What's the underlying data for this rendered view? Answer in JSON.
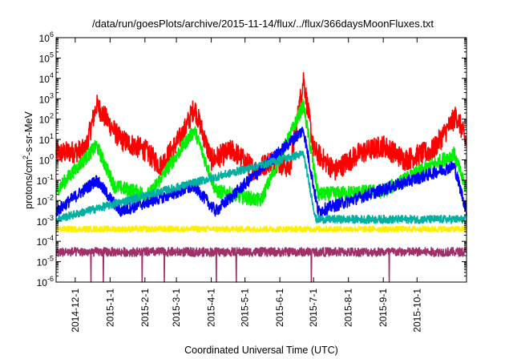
{
  "chart_data": {
    "type": "line",
    "title": "/data/run/goesPlots/archive/2015-11-14/flux/../flux/366daysMoonFluxes.txt",
    "xlabel": "Coordinated Universal Time (UTC)",
    "ylabel_parts": [
      "protons/cm",
      "2",
      "-s-sr-MeV"
    ],
    "yscale": "log",
    "ylim": [
      1e-06,
      1000000.0
    ],
    "xlim": [
      "2014-11-14",
      "2015-11-14"
    ],
    "grid": false,
    "legend": "none",
    "y_ticks": [
      {
        "exp": "-6"
      },
      {
        "exp": "-5"
      },
      {
        "exp": "-4"
      },
      {
        "exp": "-3"
      },
      {
        "exp": "-2"
      },
      {
        "exp": "-1"
      },
      {
        "exp": "0"
      },
      {
        "exp": "1"
      },
      {
        "exp": "2"
      },
      {
        "exp": "3"
      },
      {
        "exp": "4"
      },
      {
        "exp": "5"
      },
      {
        "exp": "6"
      }
    ],
    "x_ticks": [
      "2014-12-1",
      "2015-1-1",
      "2015-2-1",
      "2015-3-1",
      "2015-4-1",
      "2015-5-1",
      "2015-6-1",
      "2015-7-1",
      "2015-8-1",
      "2015-9-1",
      "2015-10-1"
    ],
    "x_tick_dates": [
      "2014-12-01",
      "2015-01-01",
      "2015-02-01",
      "2015-03-01",
      "2015-04-01",
      "2015-05-01",
      "2015-06-01",
      "2015-07-01",
      "2015-08-01",
      "2015-09-01",
      "2015-10-01"
    ],
    "series": [
      {
        "color": "#ff0000",
        "base": 3.0,
        "jitter": 0.55,
        "points": [
          [
            "2014-11-14",
            2.0
          ],
          [
            "2014-12-10",
            3.0
          ],
          [
            "2014-12-20",
            500
          ],
          [
            "2015-01-10",
            10
          ],
          [
            "2015-02-01",
            3.0
          ],
          [
            "2015-02-15",
            0.5
          ],
          [
            "2015-03-07",
            20
          ],
          [
            "2015-03-17",
            400
          ],
          [
            "2015-04-01",
            1.0
          ],
          [
            "2015-04-20",
            3.0
          ],
          [
            "2015-05-10",
            0.3
          ],
          [
            "2015-05-25",
            1.0
          ],
          [
            "2015-06-10",
            0.4
          ],
          [
            "2015-06-22",
            10000
          ],
          [
            "2015-07-01",
            3.0
          ],
          [
            "2015-07-20",
            0.3
          ],
          [
            "2015-08-10",
            2.0
          ],
          [
            "2015-09-01",
            5.0
          ],
          [
            "2015-09-20",
            1.0
          ],
          [
            "2015-10-15",
            3.0
          ],
          [
            "2015-11-05",
            150
          ],
          [
            "2015-11-14",
            8.0
          ]
        ]
      },
      {
        "color": "#00ee00",
        "base": 0.03,
        "jitter": 0.35,
        "points": [
          [
            "2014-11-14",
            0.03
          ],
          [
            "2014-12-20",
            5.0
          ],
          [
            "2015-01-05",
            0.05
          ],
          [
            "2015-02-05",
            0.02
          ],
          [
            "2015-03-17",
            30
          ],
          [
            "2015-04-05",
            0.03
          ],
          [
            "2015-05-15",
            0.01
          ],
          [
            "2015-06-22",
            500
          ],
          [
            "2015-07-05",
            0.02
          ],
          [
            "2015-09-01",
            0.03
          ],
          [
            "2015-11-03",
            2.0
          ],
          [
            "2015-11-14",
            0.03
          ]
        ]
      },
      {
        "color": "#0000ff",
        "base": 0.003,
        "jitter": 0.3,
        "points": [
          [
            "2014-11-14",
            0.003
          ],
          [
            "2014-12-20",
            0.1
          ],
          [
            "2015-01-10",
            0.003
          ],
          [
            "2015-03-17",
            0.05
          ],
          [
            "2015-04-05",
            0.003
          ],
          [
            "2015-06-22",
            30
          ],
          [
            "2015-07-05",
            0.003
          ],
          [
            "2015-11-03",
            0.5
          ],
          [
            "2015-11-14",
            0.003
          ]
        ]
      },
      {
        "color": "#00b0a0",
        "base": 0.0012,
        "jitter": 0.2,
        "points": [
          [
            "2014-11-14",
            0.0012
          ],
          [
            "2015-06-22",
            2.0
          ],
          [
            "2015-07-03",
            0.0012
          ],
          [
            "2015-11-14",
            0.0012
          ]
        ]
      },
      {
        "color": "#ffee00",
        "base": 0.0004,
        "jitter": 0.15,
        "points": [
          [
            "2014-11-14",
            0.0004
          ],
          [
            "2015-11-14",
            0.0004
          ]
        ]
      },
      {
        "color": "#a0306a",
        "base": 3e-05,
        "jitter": 0.22,
        "points": [
          [
            "2014-11-14",
            3e-05
          ],
          [
            "2015-11-14",
            3e-05
          ]
        ]
      }
    ]
  }
}
